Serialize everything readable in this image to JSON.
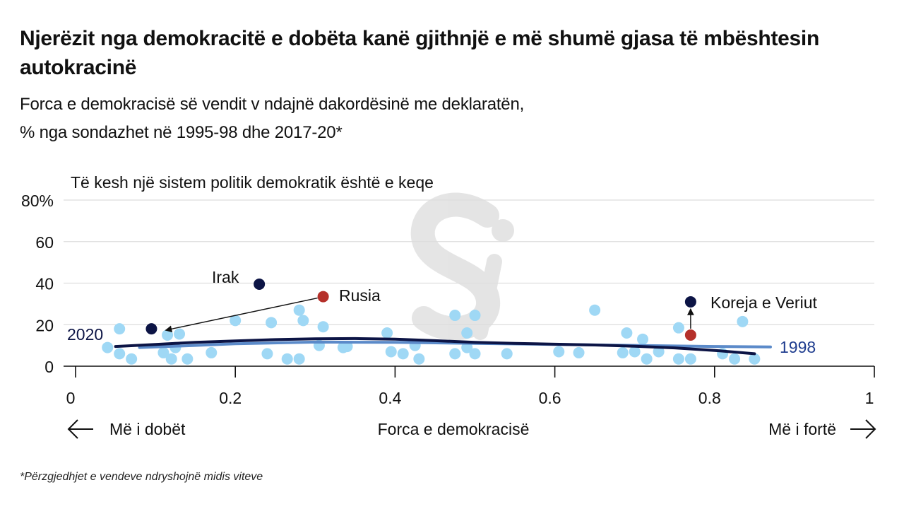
{
  "title": "Njerëzit nga demokracitë e dobëta kanë gjithnjë e më shumë gjasa të mbështesin autokracinë",
  "subtitle_line1": "Forca e demokracisë së vendit v ndajnë dakordësinë me deklaratën,",
  "subtitle_line2": "% nga sondazhet në 1995-98 dhe 2017-20*",
  "footnote": "*Përzgjedhjet e vendeve ndryshojnë midis viteve",
  "colors": {
    "dots_light": "#9fd8f5",
    "dark_navy": "#0c1445",
    "line_1998": "#5b8ac9",
    "russia_red": "#b5302a",
    "label_1998": "#1f3d8f",
    "axis": "#111111",
    "grid": "#dddddd"
  },
  "chart_data": {
    "type": "scatter",
    "ylabel": "Të kesh një sistem politik demokratik është e keqe",
    "xlabel": "Forca e demokracisë",
    "x_left_label": "Më i dobët",
    "x_right_label": "Më i fortë",
    "xlim": [
      0,
      1
    ],
    "ylim": [
      0,
      80
    ],
    "x_ticks": [
      0,
      0.2,
      0.4,
      0.6,
      0.8,
      1
    ],
    "x_tick_labels": [
      "0",
      "0.2",
      "0.4",
      "0.6",
      "0.8",
      "1"
    ],
    "y_ticks": [
      0,
      20,
      40,
      60,
      80
    ],
    "y_tick_labels": [
      "0",
      "20",
      "40",
      "60",
      "80%"
    ],
    "series_points": [
      [
        0.04,
        9
      ],
      [
        0.055,
        18
      ],
      [
        0.055,
        6
      ],
      [
        0.07,
        3.5
      ],
      [
        0.11,
        6.5
      ],
      [
        0.115,
        15
      ],
      [
        0.12,
        3.5
      ],
      [
        0.125,
        9
      ],
      [
        0.13,
        15.5
      ],
      [
        0.14,
        3.5
      ],
      [
        0.17,
        6.5
      ],
      [
        0.2,
        22
      ],
      [
        0.24,
        6
      ],
      [
        0.245,
        21
      ],
      [
        0.265,
        3.5
      ],
      [
        0.28,
        27
      ],
      [
        0.28,
        3.5
      ],
      [
        0.285,
        22
      ],
      [
        0.305,
        10
      ],
      [
        0.31,
        19
      ],
      [
        0.335,
        9
      ],
      [
        0.34,
        9.5
      ],
      [
        0.39,
        16
      ],
      [
        0.395,
        7
      ],
      [
        0.41,
        6
      ],
      [
        0.425,
        10
      ],
      [
        0.43,
        3.5
      ],
      [
        0.475,
        24.5
      ],
      [
        0.475,
        6
      ],
      [
        0.49,
        16
      ],
      [
        0.49,
        9
      ],
      [
        0.5,
        24.5
      ],
      [
        0.5,
        6
      ],
      [
        0.54,
        6
      ],
      [
        0.605,
        7
      ],
      [
        0.63,
        6.5
      ],
      [
        0.65,
        27
      ],
      [
        0.685,
        6.5
      ],
      [
        0.69,
        16
      ],
      [
        0.7,
        7
      ],
      [
        0.71,
        13
      ],
      [
        0.715,
        3.5
      ],
      [
        0.73,
        7
      ],
      [
        0.755,
        18.5
      ],
      [
        0.755,
        3.5
      ],
      [
        0.77,
        3.5
      ],
      [
        0.81,
        6
      ],
      [
        0.825,
        3.5
      ],
      [
        0.835,
        21.5
      ],
      [
        0.85,
        3.5
      ]
    ],
    "trend_2020": {
      "name": "2020",
      "x": [
        0.05,
        0.1,
        0.15,
        0.2,
        0.25,
        0.3,
        0.35,
        0.4,
        0.45,
        0.5,
        0.55,
        0.6,
        0.65,
        0.7,
        0.75,
        0.8,
        0.85
      ],
      "y": [
        9.5,
        10.5,
        11.5,
        12.2,
        12.8,
        13.2,
        13.3,
        13,
        12.3,
        11.5,
        11,
        10.6,
        10.2,
        9.6,
        8.8,
        7.6,
        6
      ]
    },
    "trend_1998": {
      "name": "1998",
      "x": [
        0.08,
        0.15,
        0.2,
        0.3,
        0.4,
        0.5,
        0.6,
        0.7,
        0.8,
        0.87
      ],
      "y": [
        9,
        10,
        10.8,
        11.6,
        11.5,
        11,
        10.5,
        10,
        9.5,
        9.3
      ]
    },
    "highlighted": [
      {
        "name": "Irak",
        "year": "2020",
        "x": 0.23,
        "y": 39.5,
        "color": "dark_navy"
      },
      {
        "name": "Irak",
        "year": "1998",
        "x": 0.095,
        "y": 18,
        "color": "dark_navy"
      },
      {
        "name": "Rusia",
        "year": "1998",
        "x": 0.31,
        "y": 33.5,
        "color": "russia_red"
      },
      {
        "name": "Koreja e Veriut",
        "year": "2020",
        "x": 0.77,
        "y": 31,
        "color": "dark_navy"
      },
      {
        "name": "Koreja e Veriut",
        "year": "1998",
        "x": 0.77,
        "y": 15,
        "color": "russia_red"
      }
    ],
    "annotations": {
      "irak": "Irak",
      "rusia": "Rusia",
      "koreja": "Koreja e Veriut"
    },
    "series_labels": {
      "s2020": "2020",
      "s1998": "1998"
    }
  }
}
